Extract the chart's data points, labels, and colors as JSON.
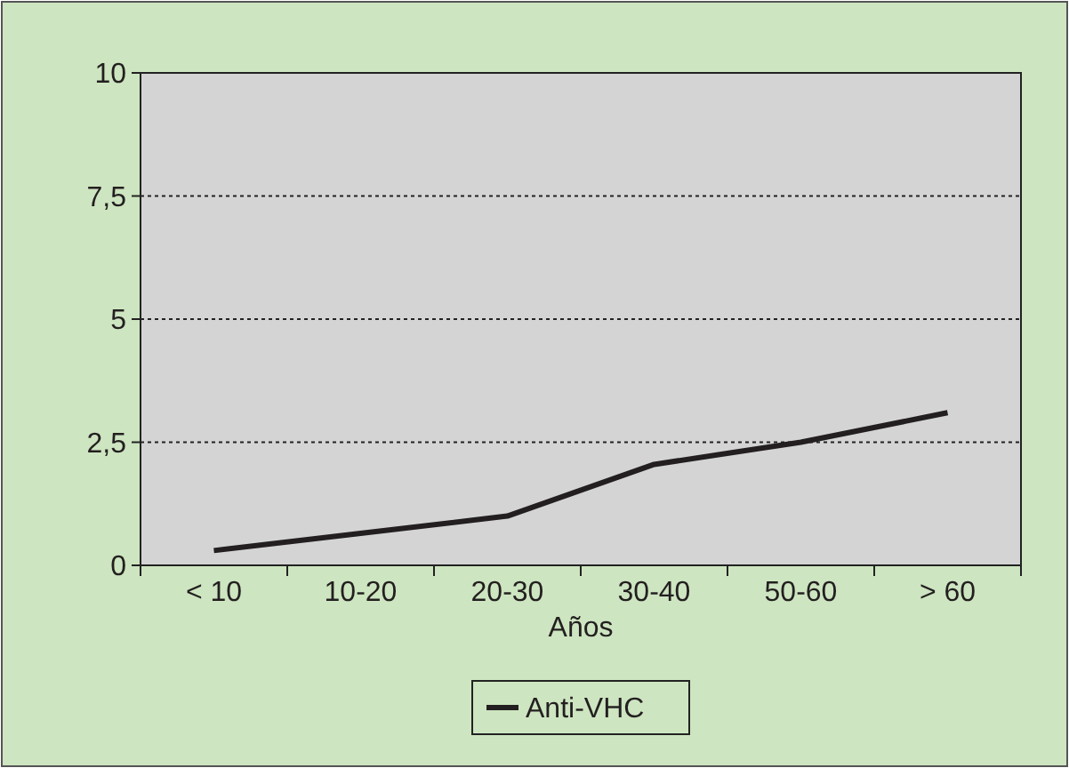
{
  "chart_data": {
    "type": "line",
    "xlabel": "Años",
    "categories": [
      "< 10",
      "10-20",
      "20-30",
      "30-40",
      "50-60",
      "> 60"
    ],
    "series": [
      {
        "name": "Anti-VHC",
        "color": "#231f20",
        "values": [
          0.3,
          0.65,
          1.0,
          2.05,
          2.5,
          3.1
        ]
      }
    ],
    "ylim": [
      0,
      10
    ],
    "yticks": [
      0,
      {
        "value": 2.5,
        "label": "2,5"
      },
      5,
      {
        "value": 7.5,
        "label": "7,5"
      },
      10
    ],
    "grid": "y",
    "legend": "bottom",
    "marker": "none",
    "line_style": "solid"
  }
}
